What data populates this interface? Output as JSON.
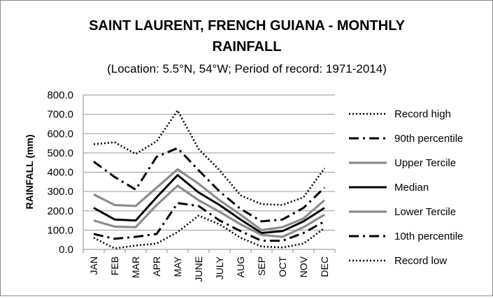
{
  "chart_data": {
    "type": "line",
    "title": "SAINT LAURENT, FRENCH GUIANA - MONTHLY RAINFALL",
    "title_lines": [
      "SAINT LAURENT, FRENCH GUIANA - MONTHLY",
      "RAINFALL"
    ],
    "subtitle": "(Location: 5.5°N, 54°W; Period of record: 1971-2014)",
    "xlabel": "",
    "ylabel": "RAINFALL (mm)",
    "ylim": [
      0,
      800
    ],
    "y_ticks": [
      "0.0",
      "100.0",
      "200.0",
      "300.0",
      "400.0",
      "500.0",
      "600.0",
      "700.0",
      "800.0"
    ],
    "grid": true,
    "legend_position": "right",
    "categories": [
      "JAN",
      "FEB",
      "MAR",
      "APR",
      "MAY",
      "JUNE",
      "JULY",
      "AUG",
      "SEP",
      "OCT",
      "NOV",
      "DEC"
    ],
    "series": [
      {
        "name": "Record high",
        "color": "#000000",
        "style": "dotted",
        "values": [
          545,
          555,
          495,
          560,
          720,
          520,
          410,
          280,
          235,
          230,
          270,
          420
        ]
      },
      {
        "name": "90th percentile",
        "color": "#000000",
        "style": "dashdot",
        "values": [
          455,
          375,
          310,
          480,
          525,
          410,
          300,
          210,
          145,
          155,
          215,
          320
        ]
      },
      {
        "name": "Upper Tercile",
        "color": "#8c8c8c",
        "style": "solid",
        "values": [
          285,
          230,
          225,
          320,
          415,
          340,
          255,
          180,
          100,
          115,
          160,
          255
        ]
      },
      {
        "name": "Median",
        "color": "#000000",
        "style": "solid",
        "values": [
          215,
          155,
          150,
          270,
          385,
          295,
          230,
          155,
          85,
          95,
          145,
          215
        ]
      },
      {
        "name": "Lower Tercile",
        "color": "#8c8c8c",
        "style": "solid",
        "values": [
          150,
          118,
          115,
          230,
          330,
          255,
          195,
          130,
          75,
          65,
          115,
          180
        ]
      },
      {
        "name": "10th percentile",
        "color": "#000000",
        "style": "dashdot",
        "values": [
          80,
          55,
          65,
          80,
          240,
          225,
          150,
          95,
          45,
          45,
          85,
          145
        ]
      },
      {
        "name": "Record low",
        "color": "#000000",
        "style": "dotted",
        "values": [
          60,
          5,
          20,
          30,
          90,
          175,
          130,
          60,
          15,
          10,
          30,
          110
        ]
      }
    ]
  }
}
